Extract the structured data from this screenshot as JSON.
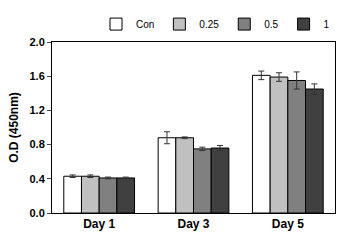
{
  "chart_data": {
    "type": "bar",
    "y_label": "O.D (450nm)",
    "categories": [
      "Day 1",
      "Day 3",
      "Day 5"
    ],
    "series": [
      {
        "name": "Con",
        "color": "#ffffff",
        "values": [
          0.43,
          0.88,
          1.61
        ],
        "errors": [
          0.015,
          0.07,
          0.05
        ]
      },
      {
        "name": "0.25",
        "color": "#c0c0c0",
        "values": [
          0.43,
          0.88,
          1.59
        ],
        "errors": [
          0.015,
          0.01,
          0.05
        ]
      },
      {
        "name": "0.5",
        "color": "#808080",
        "values": [
          0.41,
          0.75,
          1.55
        ],
        "errors": [
          0.01,
          0.02,
          0.1
        ]
      },
      {
        "name": "1",
        "color": "#404040",
        "values": [
          0.41,
          0.76,
          1.45
        ],
        "errors": [
          0.01,
          0.03,
          0.06
        ]
      }
    ],
    "ylim": [
      0,
      2
    ],
    "yticks": [
      {
        "value": 0,
        "label": "0.0"
      },
      0.4,
      0.8,
      1.2,
      1.6,
      {
        "value": 2,
        "label": "2.0"
      }
    ],
    "legend": "top right",
    "grid": false
  }
}
